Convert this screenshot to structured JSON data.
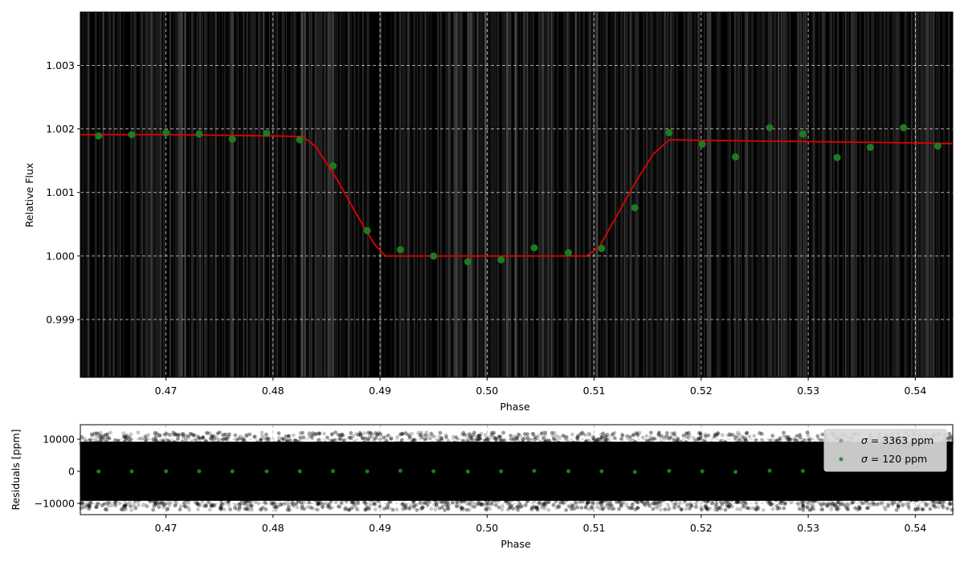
{
  "chart_data": [
    {
      "type": "scatter",
      "xlabel": "Phase",
      "ylabel": "Relative Flux",
      "xlim": [
        0.462,
        0.5435
      ],
      "ylim": [
        0.99809,
        1.00384
      ],
      "xticks": [
        "0.47",
        "0.48",
        "0.49",
        "0.50",
        "0.51",
        "0.52",
        "0.53",
        "0.54"
      ],
      "xtick_values": [
        0.47,
        0.48,
        0.49,
        0.5,
        0.51,
        0.52,
        0.53,
        0.54
      ],
      "yticks": [
        "0.999",
        "1.000",
        "1.001",
        "1.002",
        "1.003"
      ],
      "ytick_values": [
        0.999,
        1.0,
        1.001,
        1.002,
        1.003
      ],
      "grid": true,
      "background_note": "dense raw photometry rendered as near-black vertical streaks",
      "series": [
        {
          "kind": "binned-points",
          "color": "#1f7a1f",
          "x": [
            0.4637,
            0.4668,
            0.47,
            0.4731,
            0.4762,
            0.4794,
            0.4825,
            0.4856,
            0.4888,
            0.4919,
            0.495,
            0.4982,
            0.5013,
            0.5044,
            0.5076,
            0.5107,
            0.5138,
            0.517,
            0.5201,
            0.5232,
            0.5264,
            0.5295,
            0.5327,
            0.5358,
            0.5389,
            0.5421
          ],
          "y": [
            1.00189,
            1.00191,
            1.00194,
            1.00192,
            1.00184,
            1.00193,
            1.00183,
            1.00142,
            1.0004,
            1.0001,
            1.0,
            0.99991,
            0.99994,
            1.00013,
            1.00005,
            1.00012,
            1.00076,
            1.00194,
            1.00176,
            1.00156,
            1.00202,
            1.00192,
            1.00155,
            1.00171,
            1.00202,
            1.00173
          ]
        },
        {
          "kind": "model-line",
          "color": "#e00000",
          "x": [
            0.462,
            0.47,
            0.48,
            0.4828,
            0.484,
            0.486,
            0.488,
            0.4895,
            0.4905,
            0.495,
            0.5,
            0.505,
            0.5093,
            0.5105,
            0.512,
            0.514,
            0.5155,
            0.517,
            0.52,
            0.53,
            0.54,
            0.5435
          ],
          "y": [
            1.00191,
            1.00191,
            1.00189,
            1.00188,
            1.00172,
            1.0012,
            1.0006,
            1.00018,
            1.0,
            1.0,
            1.0,
            1.0,
            1.0,
            1.00015,
            1.0006,
            1.0012,
            1.0016,
            1.00183,
            1.00182,
            1.0018,
            1.00178,
            1.00177
          ]
        }
      ]
    },
    {
      "type": "scatter",
      "xlabel": "Phase",
      "ylabel": "Residuals [ppm]",
      "xlim": [
        0.462,
        0.5435
      ],
      "ylim": [
        -13500,
        14500
      ],
      "xticks": [
        "0.47",
        "0.48",
        "0.49",
        "0.50",
        "0.51",
        "0.52",
        "0.53",
        "0.54"
      ],
      "xtick_values": [
        0.47,
        0.48,
        0.49,
        0.5,
        0.51,
        0.52,
        0.53,
        0.54
      ],
      "yticks": [
        "10000",
        "0",
        "−10000"
      ],
      "ytick_values": [
        10000,
        0,
        -10000
      ],
      "grid": true,
      "legend_position": "top-right",
      "raw_scatter_sigma_ppm": 3363,
      "binned_sigma_ppm": 120,
      "legend": [
        {
          "prefix": "σ",
          "text": " = 3363 ppm",
          "color": "#9a9a9a"
        },
        {
          "prefix": "σ",
          "text": " = 120 ppm",
          "color": "#3a8a3a"
        }
      ],
      "series": [
        {
          "kind": "binned-residuals",
          "color": "#1f7a1f",
          "x": [
            0.4637,
            0.4668,
            0.47,
            0.4731,
            0.4762,
            0.4794,
            0.4825,
            0.4856,
            0.4888,
            0.4919,
            0.495,
            0.4982,
            0.5013,
            0.5044,
            0.5076,
            0.5107,
            0.5138,
            0.517,
            0.5201,
            0.5232,
            0.5264,
            0.5295
          ],
          "y": [
            -20,
            -30,
            10,
            -10,
            0,
            -20,
            -10,
            40,
            -20,
            150,
            -10,
            -80,
            0,
            130,
            30,
            -10,
            -220,
            120,
            10,
            -200,
            170,
            90
          ]
        }
      ]
    }
  ]
}
